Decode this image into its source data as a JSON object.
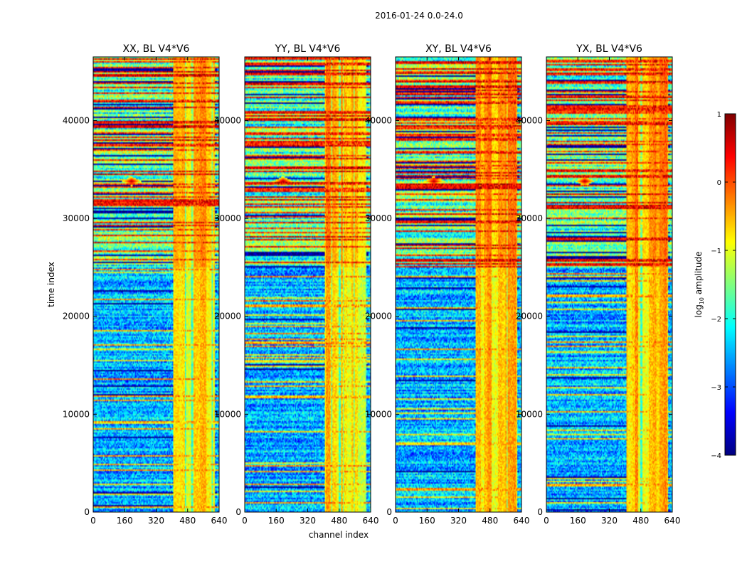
{
  "chart_data": {
    "type": "heatmap",
    "suptitle": "2016-01-24 0.0-24.0",
    "xlabel": "channel index",
    "ylabel": "time index",
    "xlim": [
      0,
      640
    ],
    "ylim": [
      0,
      46500
    ],
    "xticks": [
      0,
      160,
      320,
      480,
      640
    ],
    "yticks": [
      0,
      10000,
      20000,
      30000,
      40000
    ],
    "panels": [
      {
        "title": "XX, BL V4*V6",
        "seed": 11
      },
      {
        "title": "YY, BL V4*V6",
        "seed": 23
      },
      {
        "title": "XY, BL V4*V6",
        "seed": 37
      },
      {
        "title": "YX, BL V4*V6",
        "seed": 53
      }
    ],
    "colorbar": {
      "label": "log10 amplitude",
      "min": -4,
      "max": 1,
      "ticks": [
        1,
        0,
        -1,
        -2,
        -3,
        -4
      ],
      "tick_labels": [
        "1",
        "0",
        "−1",
        "−2",
        "−3",
        "−4"
      ],
      "colormap": "jet"
    },
    "features": {
      "rfi_channel_start": 405,
      "rfi_channel_end": 620,
      "high_amplitude_time_start": 25000,
      "quiet_time_end": 25000,
      "flare_time": 33800,
      "flare_channel": 195
    }
  }
}
